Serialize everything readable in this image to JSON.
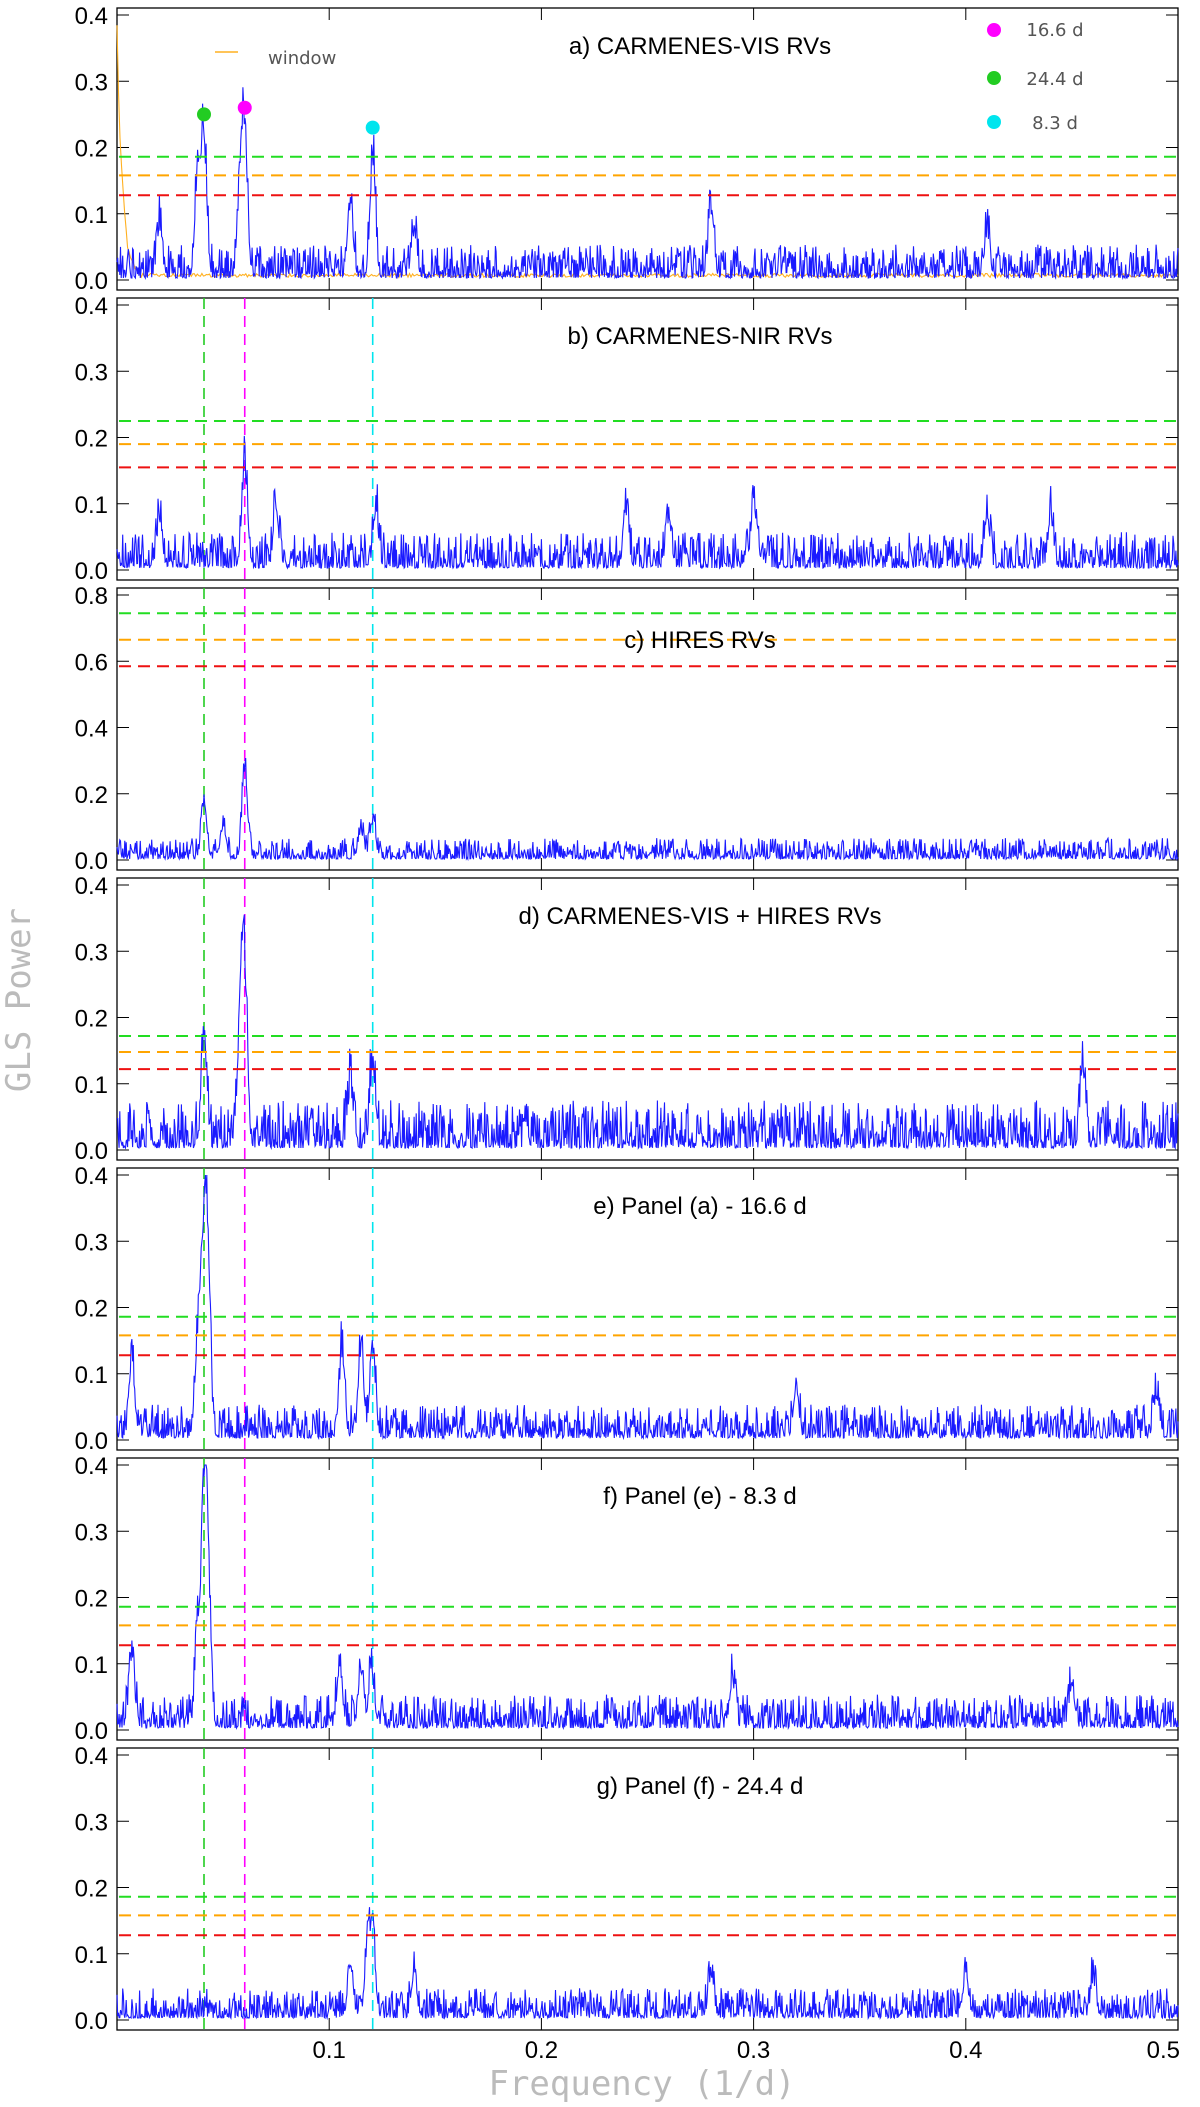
{
  "chart_data": {
    "type": "line",
    "xlabel": "Frequency (1/d)",
    "ylabel": "GLS Power",
    "xlim": [
      0.0,
      0.5
    ],
    "x_ticks": [
      "0.1",
      "0.2",
      "0.3",
      "0.4",
      "0.5"
    ],
    "x_tick_values": [
      0.1,
      0.2,
      0.3,
      0.4,
      0.5
    ],
    "colors": {
      "periodogram": "#1a1aff",
      "window": "#ffb020",
      "fap_green": "#22dd22",
      "fap_orange": "#ffa500",
      "fap_red": "#ee1111",
      "marker_16_6": "#ff00ff",
      "marker_24_4": "#22cc22",
      "marker_8_3": "#00e5ee"
    },
    "signals": [
      {
        "label": "16.6 d",
        "frequency": 0.0602,
        "color": "#ff00ff"
      },
      {
        "label": "24.4 d",
        "frequency": 0.041,
        "color": "#22cc22"
      },
      {
        "label": "8.3 d",
        "frequency": 0.1205,
        "color": "#00e5ee"
      }
    ],
    "legend": {
      "window_label": "window"
    },
    "panels": [
      {
        "title": "a) CARMENES-VIS RVs",
        "ylim": [
          0.0,
          0.4
        ],
        "y_ticks": [
          "0.0",
          "0.1",
          "0.2",
          "0.3",
          "0.4"
        ],
        "y_tick_values": [
          0.0,
          0.1,
          0.2,
          0.3,
          0.4
        ],
        "fap_levels": [
          0.186,
          0.158,
          0.128
        ],
        "noise_level": 0.028,
        "peaks": [
          [
            0.041,
            0.22
          ],
          [
            0.0602,
            0.22
          ],
          [
            0.1205,
            0.19
          ],
          [
            0.038,
            0.16
          ],
          [
            0.058,
            0.14
          ],
          [
            0.11,
            0.12
          ],
          [
            0.28,
            0.11
          ],
          [
            0.02,
            0.08
          ],
          [
            0.14,
            0.07
          ],
          [
            0.41,
            0.07
          ]
        ],
        "has_window": true,
        "markers": [
          {
            "label": "16.6 d",
            "frequency": 0.0602,
            "power": 0.26
          },
          {
            "label": "24.4 d",
            "frequency": 0.041,
            "power": 0.25
          },
          {
            "label": "8.3 d",
            "frequency": 0.1205,
            "power": 0.23
          }
        ]
      },
      {
        "title": "b) CARMENES-NIR RVs",
        "ylim": [
          0.0,
          0.4
        ],
        "y_ticks": [
          "0.0",
          "0.1",
          "0.2",
          "0.3",
          "0.4"
        ],
        "y_tick_values": [
          0.0,
          0.1,
          0.2,
          0.3,
          0.4
        ],
        "fap_levels": [
          0.225,
          0.19,
          0.155
        ],
        "noise_level": 0.03,
        "peaks": [
          [
            0.0602,
            0.165
          ],
          [
            0.3,
            0.105
          ],
          [
            0.075,
            0.09
          ],
          [
            0.24,
            0.08
          ],
          [
            0.122,
            0.085
          ],
          [
            0.41,
            0.08
          ],
          [
            0.44,
            0.08
          ],
          [
            0.02,
            0.075
          ],
          [
            0.26,
            0.08
          ]
        ],
        "has_window": false,
        "markers": []
      },
      {
        "title": "c) HIRES RVs",
        "ylim": [
          0.0,
          0.8
        ],
        "y_ticks": [
          "0.0",
          "0.2",
          "0.4",
          "0.6",
          "0.8"
        ],
        "y_tick_values": [
          0.0,
          0.2,
          0.4,
          0.6,
          0.8
        ],
        "fap_levels": [
          0.745,
          0.665,
          0.585
        ],
        "noise_level": 0.035,
        "peaks": [
          [
            0.0602,
            0.27
          ],
          [
            0.041,
            0.17
          ],
          [
            0.1205,
            0.12
          ],
          [
            0.115,
            0.09
          ],
          [
            0.05,
            0.1
          ]
        ],
        "has_window": false,
        "markers": []
      },
      {
        "title": "d) CARMENES-VIS + HIRES RVs",
        "ylim": [
          0.0,
          0.4
        ],
        "y_ticks": [
          "0.0",
          "0.1",
          "0.2",
          "0.3",
          "0.4"
        ],
        "y_tick_values": [
          0.0,
          0.1,
          0.2,
          0.3,
          0.4
        ],
        "fap_levels": [
          0.172,
          0.148,
          0.122
        ],
        "noise_level": 0.04,
        "peaks": [
          [
            0.0602,
            0.275
          ],
          [
            0.058,
            0.2
          ],
          [
            0.041,
            0.165
          ],
          [
            0.1205,
            0.13
          ],
          [
            0.11,
            0.1
          ],
          [
            0.455,
            0.12
          ]
        ],
        "has_window": false,
        "markers": []
      },
      {
        "title": "e) Panel (a) - 16.6 d",
        "ylim": [
          0.0,
          0.4
        ],
        "y_ticks": [
          "0.0",
          "0.1",
          "0.2",
          "0.3",
          "0.4"
        ],
        "y_tick_values": [
          0.0,
          0.1,
          0.2,
          0.3,
          0.4
        ],
        "fap_levels": [
          0.186,
          0.158,
          0.128
        ],
        "noise_level": 0.028,
        "peaks": [
          [
            0.041,
            0.32
          ],
          [
            0.043,
            0.21
          ],
          [
            0.038,
            0.15
          ],
          [
            0.106,
            0.14
          ],
          [
            0.1205,
            0.14
          ],
          [
            0.115,
            0.13
          ],
          [
            0.007,
            0.12
          ],
          [
            0.49,
            0.065
          ],
          [
            0.32,
            0.07
          ]
        ],
        "has_window": false,
        "markers": []
      },
      {
        "title": "f) Panel (e) - 8.3 d",
        "ylim": [
          0.0,
          0.4
        ],
        "y_ticks": [
          "0.0",
          "0.1",
          "0.2",
          "0.3",
          "0.4"
        ],
        "y_tick_values": [
          0.0,
          0.1,
          0.2,
          0.3,
          0.4
        ],
        "fap_levels": [
          0.186,
          0.158,
          0.128
        ],
        "noise_level": 0.028,
        "peaks": [
          [
            0.041,
            0.35
          ],
          [
            0.043,
            0.21
          ],
          [
            0.038,
            0.15
          ],
          [
            0.007,
            0.12
          ],
          [
            0.105,
            0.095
          ],
          [
            0.115,
            0.09
          ],
          [
            0.12,
            0.09
          ],
          [
            0.29,
            0.075
          ],
          [
            0.45,
            0.07
          ]
        ],
        "has_window": false,
        "markers": []
      },
      {
        "title": "g) Panel (f) - 24.4 d",
        "ylim": [
          0.0,
          0.4
        ],
        "y_ticks": [
          "0.0",
          "0.1",
          "0.2",
          "0.3",
          "0.4"
        ],
        "y_tick_values": [
          0.0,
          0.1,
          0.2,
          0.3,
          0.4
        ],
        "fap_levels": [
          0.186,
          0.158,
          0.128
        ],
        "noise_level": 0.025,
        "peaks": [
          [
            0.1205,
            0.125
          ],
          [
            0.118,
            0.1
          ],
          [
            0.11,
            0.08
          ],
          [
            0.14,
            0.07
          ],
          [
            0.28,
            0.065
          ],
          [
            0.4,
            0.065
          ],
          [
            0.46,
            0.06
          ]
        ],
        "has_window": false,
        "markers": []
      }
    ]
  }
}
